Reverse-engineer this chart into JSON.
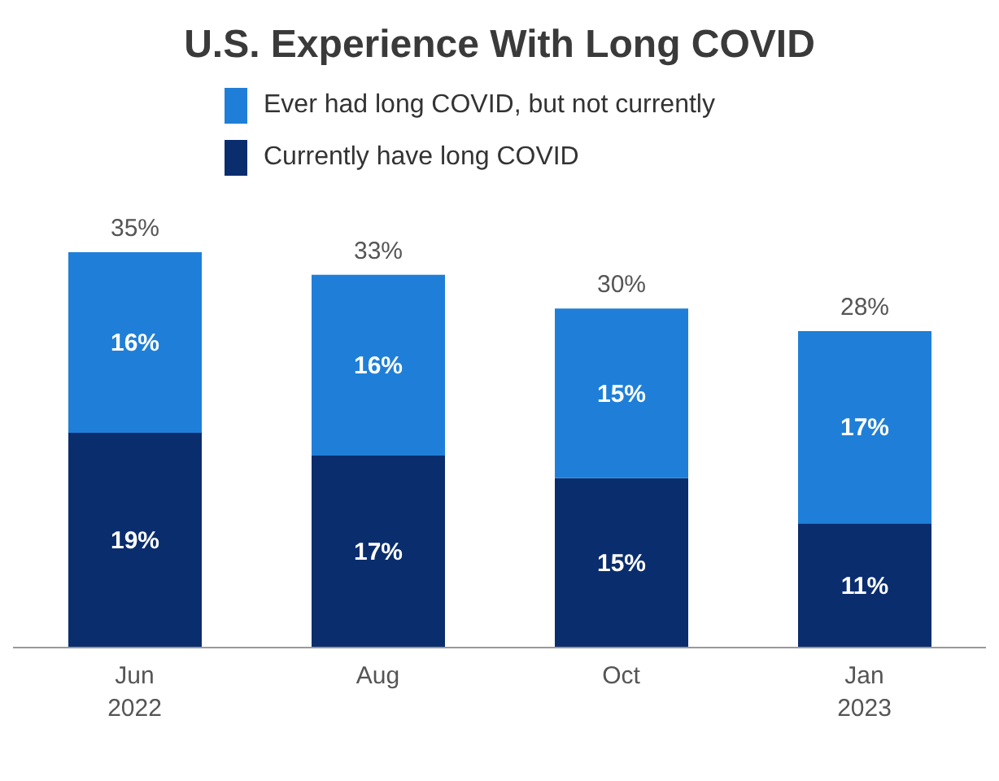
{
  "chart_data": {
    "type": "bar",
    "stacked": true,
    "title": "U.S. Experience With Long COVID",
    "categories": [
      "Jun 2022",
      "Aug",
      "Oct",
      "Jan 2023"
    ],
    "legend": "top",
    "series": [
      {
        "name": "Currently have long COVID",
        "color": "#0a2d6e",
        "values": [
          19,
          17,
          15,
          11
        ],
        "value_labels": [
          "19%",
          "17%",
          "15%",
          "11%"
        ]
      },
      {
        "name": "Ever had long COVID, but not currently",
        "color": "#1f7fd8",
        "values": [
          16,
          16,
          15,
          17
        ],
        "value_labels": [
          "16%",
          "16%",
          "15%",
          "17%"
        ]
      }
    ],
    "totals": [
      "35%",
      "33%",
      "30%",
      "28%"
    ]
  }
}
